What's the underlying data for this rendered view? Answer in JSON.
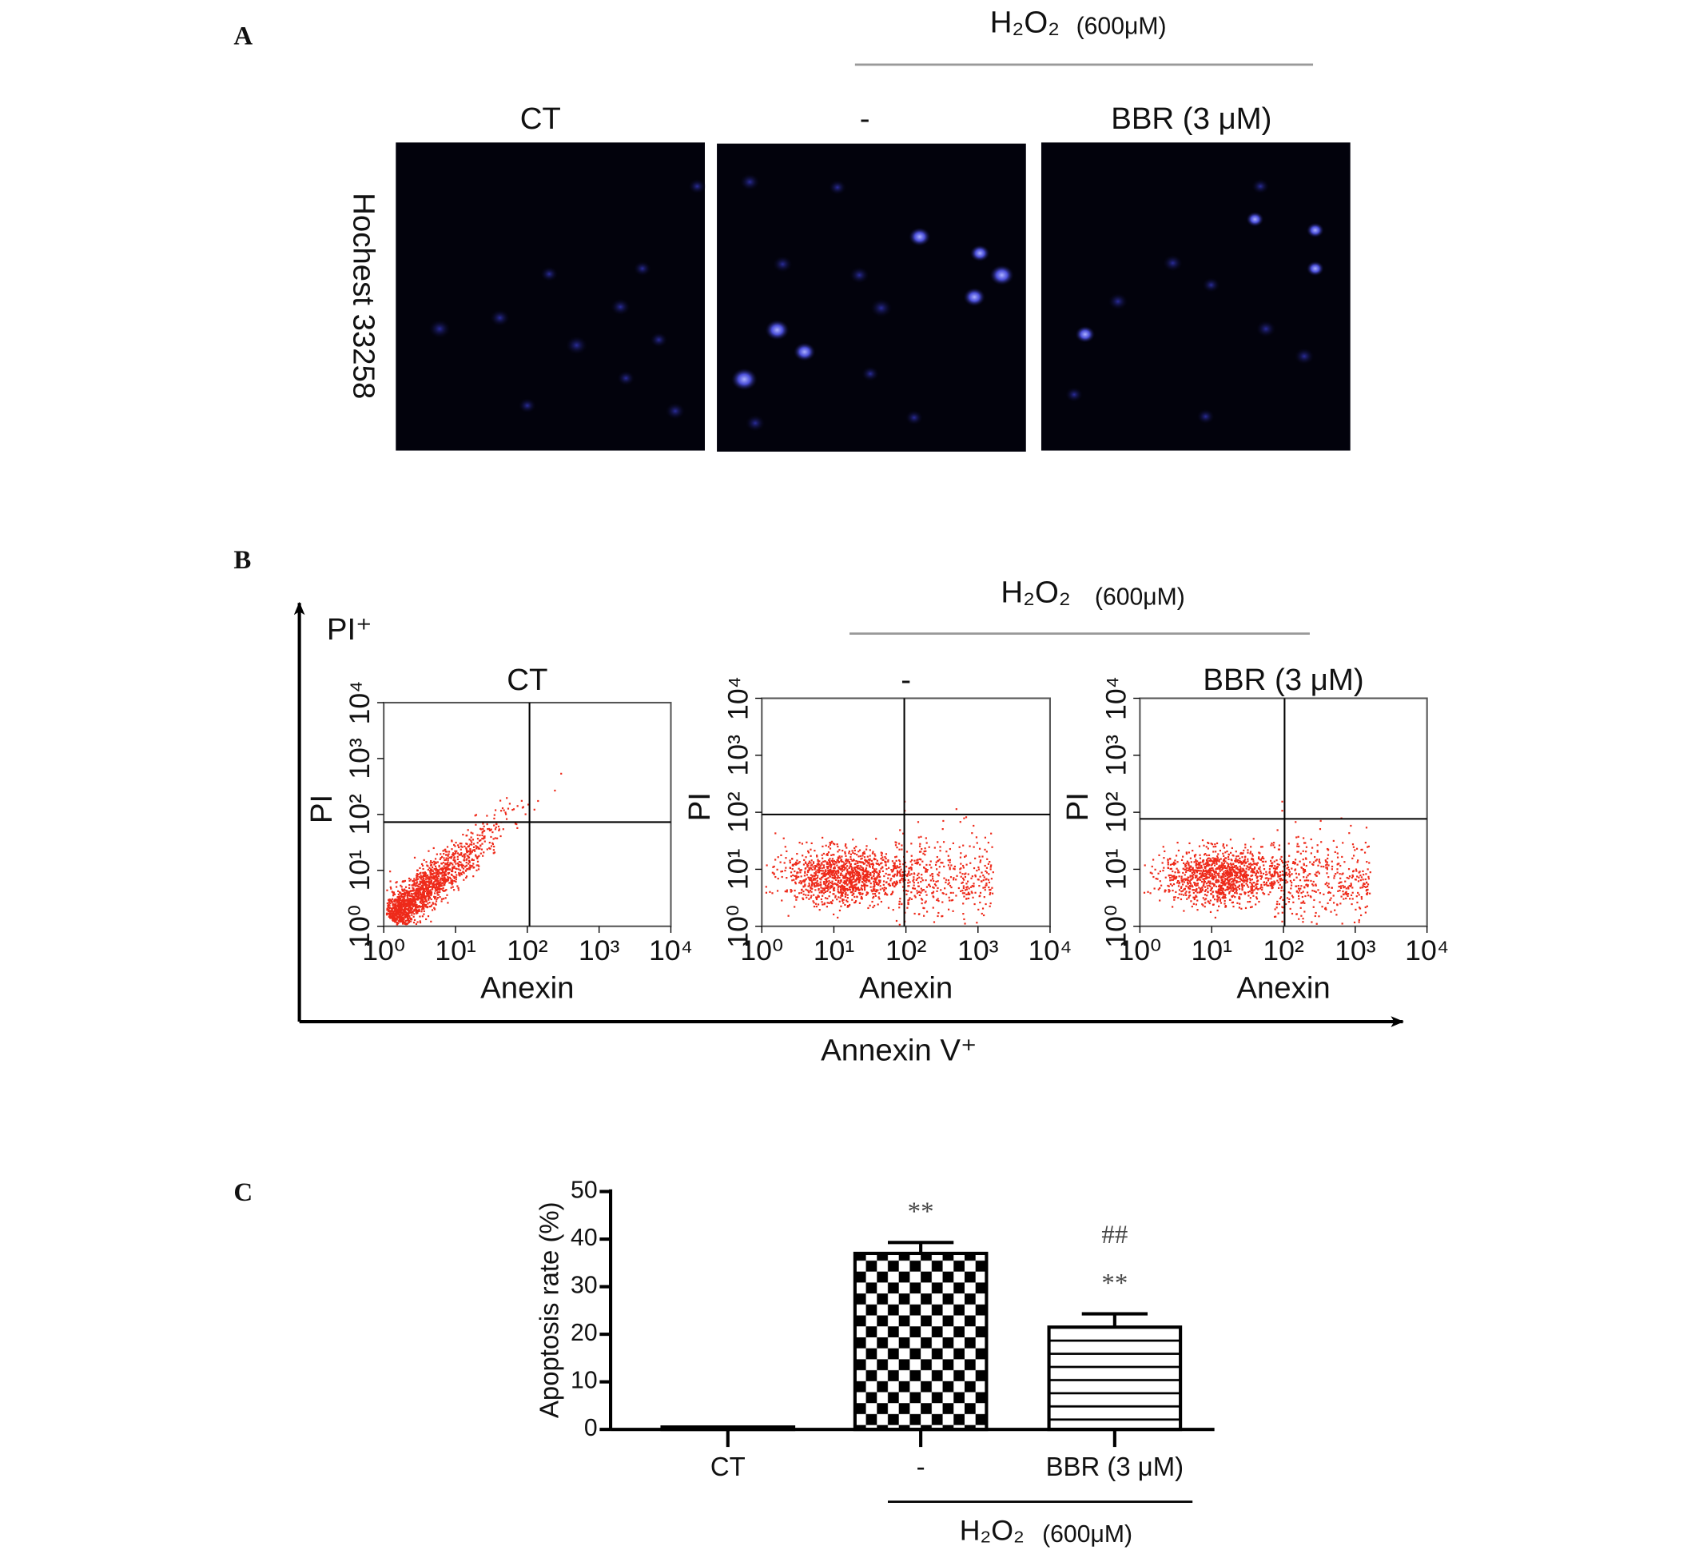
{
  "panel_a": {
    "label": "A",
    "treatment": "H₂O₂",
    "concentration": "(600μM)",
    "columns": [
      "CT",
      "-",
      "BBR (3 μM)"
    ],
    "row_label": "Hochest 33258"
  },
  "panel_b": {
    "label": "B",
    "treatment": "H₂O₂",
    "concentration": "(600μM)",
    "y_axis": "PI⁺",
    "x_axis": "Annexin V⁺",
    "plots": [
      {
        "title": "CT"
      },
      {
        "title": "-"
      },
      {
        "title": "BBR (3 μM)"
      }
    ],
    "x_label": "Anexin",
    "y_label": "PI",
    "ticks": [
      "10⁰",
      "10¹",
      "10²",
      "10³",
      "10⁴"
    ]
  },
  "chart_data": {
    "type": "bar",
    "panel_label": "C",
    "y_label": "Apoptosis rate (%)",
    "categories": [
      "CT",
      "-",
      "BBR (3 μM)"
    ],
    "values": [
      0.5,
      37,
      21.5
    ],
    "errors": [
      null,
      2.3,
      2.8
    ],
    "markers": [
      null,
      [
        "**"
      ],
      [
        "**",
        "##"
      ]
    ],
    "fill_patterns": [
      "solid",
      "checkerboard",
      "horizontal-lines"
    ],
    "group_label": {
      "treatment": "H₂O₂",
      "concentration": "(600μM)"
    },
    "ylim": [
      0,
      50
    ],
    "yticks": [
      0,
      10,
      20,
      30,
      40,
      50
    ]
  }
}
